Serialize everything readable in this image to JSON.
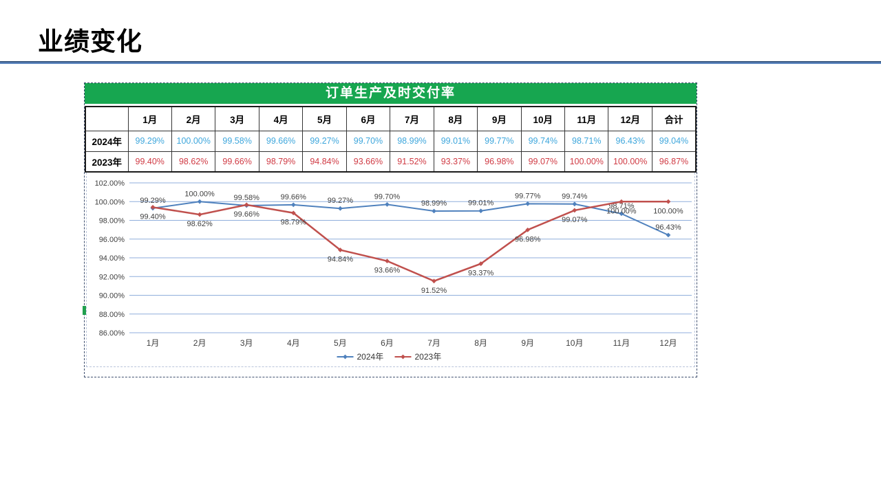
{
  "slide": {
    "title": "业绩变化"
  },
  "panel": {
    "table": {
      "title": "订单生产及时交付率",
      "corner": "",
      "columns": [
        "1月",
        "2月",
        "3月",
        "4月",
        "5月",
        "6月",
        "7月",
        "8月",
        "9月",
        "10月",
        "11月",
        "12月",
        "合计"
      ],
      "rows": [
        {
          "label": "2024年",
          "color": "#3DA6DC",
          "values": [
            "99.29%",
            "100.00%",
            "99.58%",
            "99.66%",
            "99.27%",
            "99.70%",
            "98.99%",
            "99.01%",
            "99.77%",
            "99.74%",
            "98.71%",
            "96.43%",
            "99.04%"
          ]
        },
        {
          "label": "2023年",
          "color": "#D03B44",
          "values": [
            "99.40%",
            "98.62%",
            "99.66%",
            "98.79%",
            "94.84%",
            "93.66%",
            "91.52%",
            "93.37%",
            "96.98%",
            "99.07%",
            "100.00%",
            "100.00%",
            "96.87%"
          ]
        }
      ]
    }
  },
  "chart_data": {
    "type": "line",
    "title": "",
    "categories": [
      "1月",
      "2月",
      "3月",
      "4月",
      "5月",
      "6月",
      "7月",
      "8月",
      "9月",
      "10月",
      "11月",
      "12月"
    ],
    "series": [
      {
        "name": "2024年",
        "color": "#4F81BD",
        "label_position": "above",
        "values": [
          99.29,
          100.0,
          99.58,
          99.66,
          99.27,
          99.7,
          98.99,
          99.01,
          99.77,
          99.74,
          98.71,
          96.43
        ]
      },
      {
        "name": "2023年",
        "color": "#C0504D",
        "label_position": "below",
        "values": [
          99.4,
          98.62,
          99.66,
          98.79,
          94.84,
          93.66,
          91.52,
          93.37,
          96.98,
          99.07,
          100.0,
          100.0
        ]
      }
    ],
    "ylim": [
      86,
      102
    ],
    "ytick_step": 2,
    "ytick_format": "percent2",
    "grid": true,
    "legend_position": "bottom"
  },
  "colors": {
    "header_green": "#17A650",
    "grid": "#8FAEDC",
    "axis_text": "#3F3F3F",
    "label_text": "#3F3F3F"
  }
}
